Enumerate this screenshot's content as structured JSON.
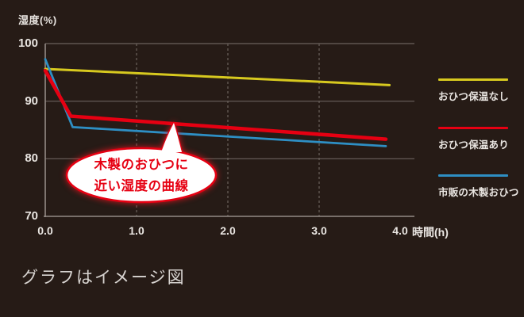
{
  "caption": "グラフはイメージ図",
  "chart_data": {
    "type": "line",
    "title": "",
    "ylabel": "湿度(%)",
    "xlabel": "時間(h)",
    "y_ticks": [
      "100",
      "90",
      "80",
      "70"
    ],
    "x_ticks": [
      "0.0",
      "1.0",
      "2.0",
      "3.0",
      "4.0"
    ],
    "ylim": [
      70,
      100
    ],
    "xlim": [
      0,
      4.05
    ],
    "grid": {
      "horizontal": "solid",
      "vertical": "dashed",
      "vertical_at": [
        1,
        2,
        3
      ]
    },
    "legend_position": "right",
    "series": [
      {
        "name": "おひつ保温なし",
        "color": "#d7c91f",
        "stroke_width": 3,
        "points": [
          [
            0,
            95.6
          ],
          [
            3.77,
            92.8
          ]
        ]
      },
      {
        "name": "おひつ保温あり",
        "color": "#e60012",
        "stroke_width": 4.5,
        "points": [
          [
            0,
            95.3
          ],
          [
            0.28,
            87.4
          ],
          [
            3.73,
            83.4
          ]
        ]
      },
      {
        "name": "市販の木製おひつ",
        "color": "#2e8fc4",
        "stroke_width": 2.8,
        "points": [
          [
            0,
            97.3
          ],
          [
            0.3,
            85.5
          ],
          [
            3.73,
            82.2
          ]
        ]
      }
    ]
  },
  "annotation": {
    "line1": "木製のおひつに",
    "line2": "近い湿度の曲線",
    "text_color": "#e60012",
    "bubble_fill": "#ffffff",
    "bubble_border": "#e60012"
  },
  "colors": {
    "background": "#261b16",
    "grid": "#6b625d",
    "axis": "#948b86",
    "tick_text": "#e9e5e1"
  }
}
